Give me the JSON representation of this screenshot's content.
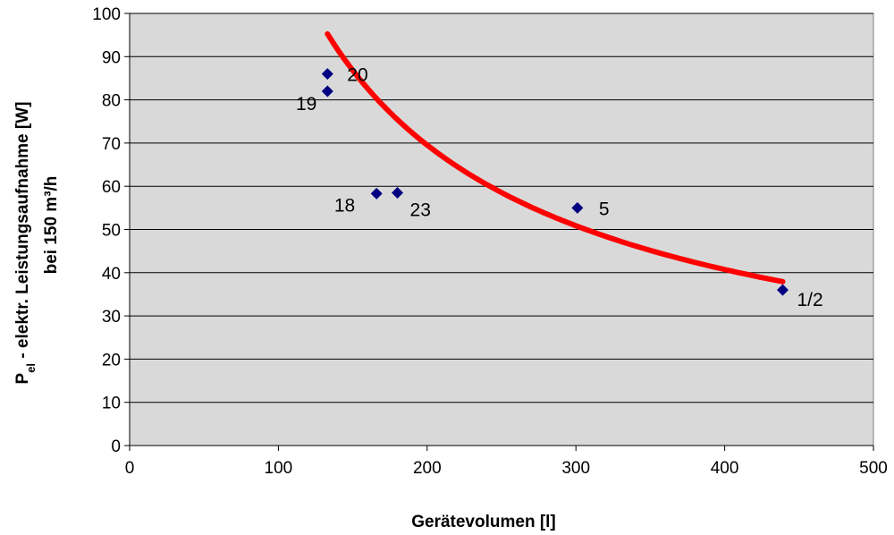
{
  "chart_data": {
    "type": "scatter",
    "title": "",
    "xlabel": "Gerätevolumen  [l]",
    "ylabel": {
      "line1_prefix": "P",
      "line1_sub": "el",
      "line1_rest": " - elektr. Leistungsaufnahme  [W]",
      "line2": "bei 150 m³/h"
    },
    "xlim": [
      0,
      500
    ],
    "ylim": [
      0,
      100
    ],
    "xticks": [
      0,
      100,
      200,
      300,
      400,
      500
    ],
    "yticks": [
      0,
      10,
      20,
      30,
      40,
      50,
      60,
      70,
      80,
      90,
      100
    ],
    "grid": "horizontal",
    "plot_background": "#d9d9d9",
    "point_color": "#000080",
    "trend_color": "#ff0000",
    "points": [
      {
        "x": 133,
        "y": 86,
        "label": "20"
      },
      {
        "x": 133,
        "y": 82,
        "label": "19"
      },
      {
        "x": 166,
        "y": 58.3,
        "label": "18"
      },
      {
        "x": 180,
        "y": 58.5,
        "label": "23"
      },
      {
        "x": 301,
        "y": 55,
        "label": "5"
      },
      {
        "x": 439,
        "y": 36,
        "label": "1/2"
      }
    ],
    "trendline": {
      "type": "power",
      "coefficient": 4140,
      "exponent": -0.7713,
      "x_start": 133,
      "x_end": 439
    }
  }
}
